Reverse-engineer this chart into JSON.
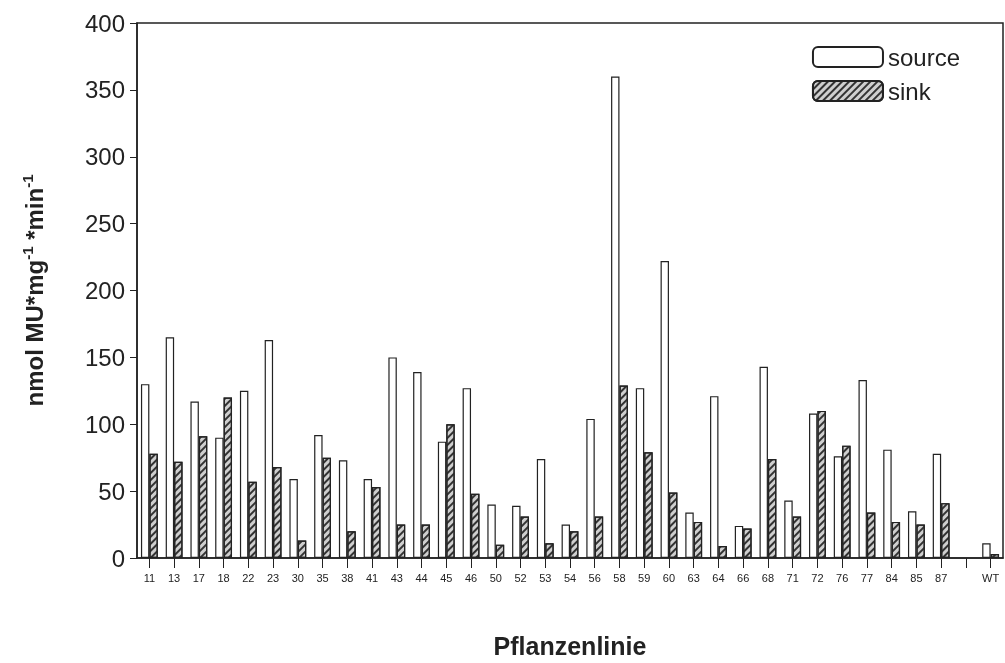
{
  "chart_data": {
    "type": "bar",
    "xlabel": "Pflanzenlinie",
    "ylabel": "nmol MU*mg$^{-1}$ *min$^{-1}$",
    "categories": [
      "11",
      "13",
      "17",
      "18",
      "22",
      "23",
      "30",
      "35",
      "38",
      "41",
      "43",
      "44",
      "45",
      "46",
      "50",
      "52",
      "53",
      "54",
      "56",
      "58",
      "59",
      "60",
      "63",
      "64",
      "66",
      "68",
      "71",
      "72",
      "76",
      "77",
      "84",
      "85",
      "87",
      null,
      "WT"
    ],
    "series": [
      {
        "name": "source",
        "color": "#ffffff",
        "values": [
          130,
          165,
          117,
          90,
          125,
          163,
          59,
          92,
          73,
          59,
          150,
          139,
          87,
          127,
          40,
          39,
          74,
          25,
          104,
          360,
          127,
          222,
          34,
          121,
          24,
          143,
          43,
          108,
          76,
          133,
          81,
          35,
          78,
          null,
          11
        ]
      },
      {
        "name": "sink",
        "color": "#cfcfcf",
        "values": [
          78,
          72,
          91,
          120,
          57,
          68,
          13,
          75,
          20,
          53,
          25,
          25,
          100,
          48,
          10,
          31,
          11,
          20,
          31,
          129,
          79,
          49,
          27,
          9,
          22,
          74,
          31,
          110,
          84,
          34,
          27,
          25,
          41,
          null,
          3
        ]
      }
    ],
    "ylim": [
      0,
      400
    ],
    "yticks": [
      0,
      50,
      100,
      150,
      200,
      250,
      300,
      350,
      400
    ],
    "grid": false,
    "legend": "top right"
  }
}
